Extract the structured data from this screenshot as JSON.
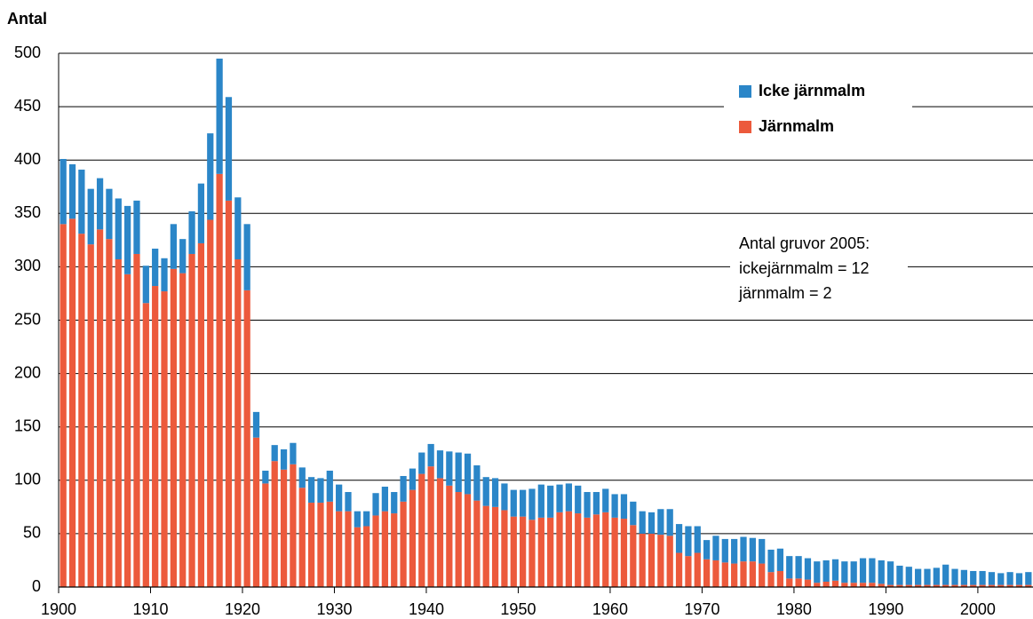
{
  "chart_data": {
    "type": "bar",
    "stacked": true,
    "y_label": "Antal",
    "annotation": [
      "Antal gruvor 2005:",
      "ickejärnmalm = 12",
      "järnmalm = 2"
    ],
    "x": [
      1900,
      1901,
      1902,
      1903,
      1904,
      1905,
      1906,
      1907,
      1908,
      1909,
      1910,
      1911,
      1912,
      1913,
      1914,
      1915,
      1916,
      1917,
      1918,
      1919,
      1920,
      1921,
      1922,
      1923,
      1924,
      1925,
      1926,
      1927,
      1928,
      1929,
      1930,
      1931,
      1932,
      1933,
      1934,
      1935,
      1936,
      1937,
      1938,
      1939,
      1940,
      1941,
      1942,
      1943,
      1944,
      1945,
      1946,
      1947,
      1948,
      1949,
      1950,
      1951,
      1952,
      1953,
      1954,
      1955,
      1956,
      1957,
      1958,
      1959,
      1960,
      1961,
      1962,
      1963,
      1964,
      1965,
      1966,
      1967,
      1968,
      1969,
      1970,
      1971,
      1972,
      1973,
      1974,
      1975,
      1976,
      1977,
      1978,
      1979,
      1980,
      1981,
      1982,
      1983,
      1984,
      1985,
      1986,
      1987,
      1988,
      1989,
      1990,
      1991,
      1992,
      1993,
      1994,
      1995,
      1996,
      1997,
      1998,
      1999,
      2000,
      2001,
      2002,
      2003,
      2004,
      2005
    ],
    "series": [
      {
        "name": "Järnmalm",
        "color": "#ec5a3c",
        "values": [
          340,
          345,
          331,
          321,
          335,
          326,
          307,
          293,
          312,
          266,
          282,
          277,
          298,
          294,
          312,
          322,
          344,
          387,
          362,
          307,
          278,
          140,
          97,
          118,
          110,
          115,
          93,
          79,
          79,
          80,
          71,
          71,
          56,
          57,
          67,
          71,
          69,
          80,
          91,
          106,
          113,
          102,
          95,
          89,
          87,
          81,
          76,
          75,
          72,
          66,
          66,
          63,
          65,
          65,
          70,
          71,
          69,
          65,
          68,
          70,
          65,
          64,
          58,
          50,
          50,
          49,
          48,
          32,
          29,
          32,
          26,
          25,
          23,
          22,
          24,
          24,
          22,
          14,
          15,
          8,
          8,
          7,
          4,
          5,
          6,
          4,
          4,
          4,
          4,
          3,
          2,
          2,
          2,
          2,
          2,
          2,
          2,
          2,
          2,
          2,
          2,
          2,
          2,
          2,
          2,
          2
        ]
      },
      {
        "name": "Icke järnmalm",
        "color": "#2b86c8",
        "values": [
          61,
          51,
          60,
          52,
          48,
          47,
          57,
          64,
          50,
          35,
          35,
          31,
          42,
          32,
          40,
          56,
          81,
          108,
          97,
          58,
          62,
          24,
          12,
          15,
          19,
          20,
          19,
          24,
          23,
          29,
          25,
          18,
          15,
          14,
          21,
          23,
          20,
          24,
          20,
          20,
          21,
          26,
          32,
          37,
          38,
          33,
          27,
          27,
          25,
          25,
          25,
          29,
          31,
          30,
          26,
          26,
          26,
          24,
          21,
          22,
          22,
          23,
          22,
          21,
          20,
          24,
          25,
          27,
          28,
          25,
          18,
          23,
          22,
          23,
          23,
          22,
          23,
          21,
          21,
          21,
          21,
          20,
          20,
          20,
          20,
          20,
          20,
          23,
          23,
          22,
          22,
          18,
          17,
          15,
          15,
          16,
          19,
          15,
          14,
          13,
          13,
          12,
          11,
          12,
          11,
          12
        ]
      }
    ],
    "xlim": [
      1900,
      2006
    ],
    "xticks": [
      1900,
      1910,
      1920,
      1930,
      1940,
      1950,
      1960,
      1970,
      1980,
      1990,
      2000
    ],
    "ylim": [
      0,
      500
    ],
    "yticks": [
      0,
      50,
      100,
      150,
      200,
      250,
      300,
      350,
      400,
      450,
      500
    ],
    "grid": true,
    "legend": "top-right"
  }
}
